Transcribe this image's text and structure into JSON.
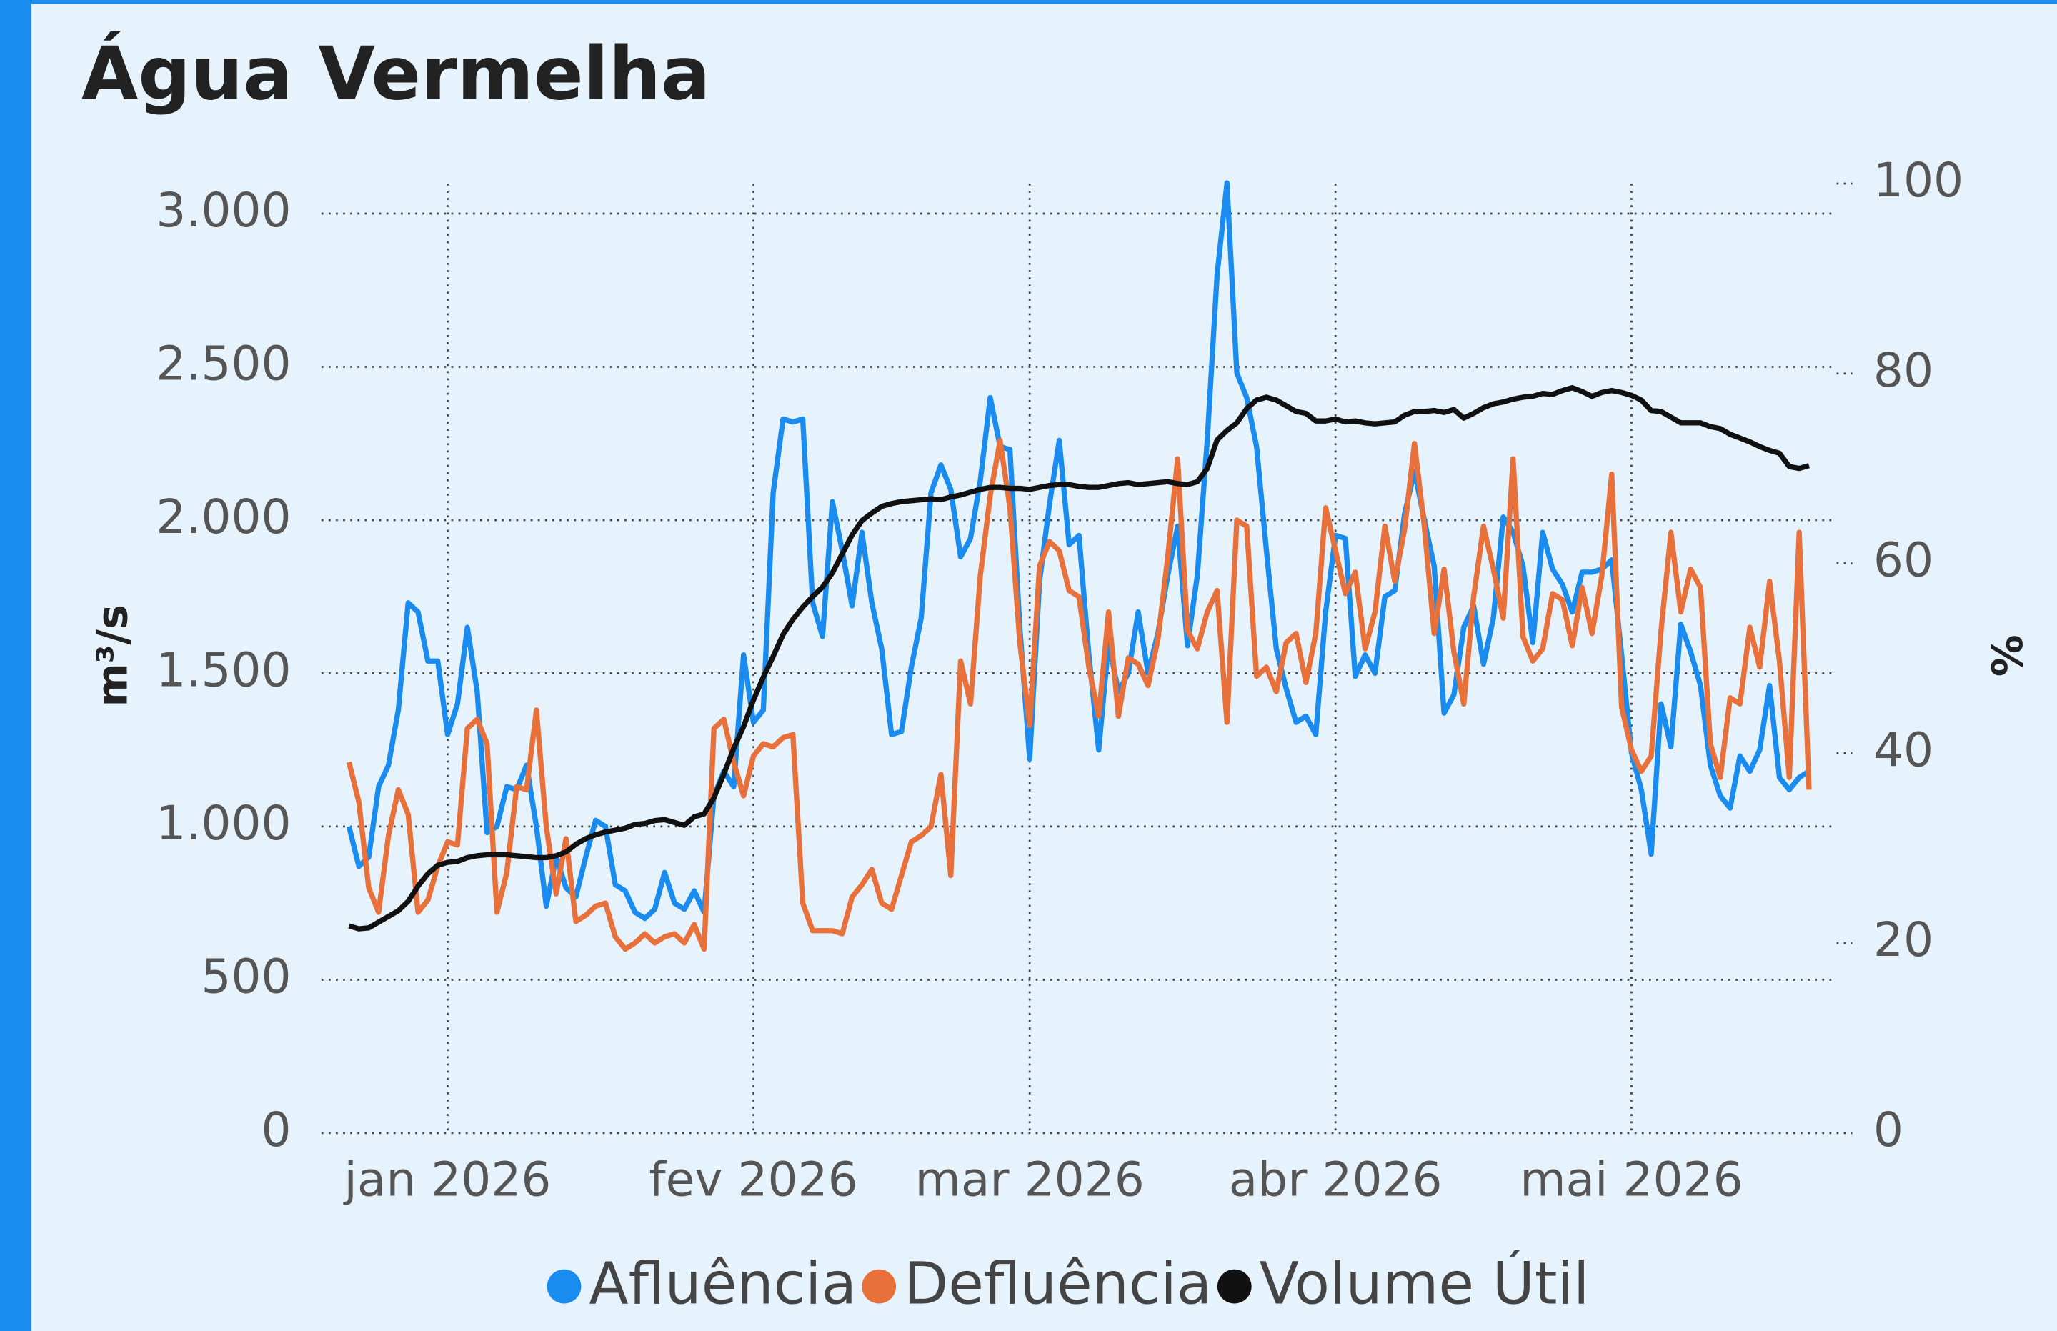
{
  "chart_data": {
    "type": "line",
    "title": "Água Vermelha",
    "y_label": "m³/s",
    "y2_label": "%",
    "categories": [
      null,
      null,
      null,
      null,
      null,
      null,
      null,
      null,
      null,
      null,
      "jan 2026",
      null,
      null,
      null,
      null,
      null,
      null,
      null,
      null,
      null,
      null,
      null,
      null,
      null,
      null,
      null,
      null,
      null,
      null,
      null,
      null,
      null,
      null,
      null,
      null,
      null,
      null,
      null,
      null,
      null,
      null,
      "fev 2026",
      null,
      null,
      null,
      null,
      null,
      null,
      null,
      null,
      null,
      null,
      null,
      null,
      null,
      null,
      null,
      null,
      null,
      null,
      null,
      null,
      null,
      null,
      null,
      null,
      null,
      null,
      null,
      "mar 2026",
      null,
      null,
      null,
      null,
      null,
      null,
      null,
      null,
      null,
      null,
      null,
      null,
      null,
      null,
      null,
      null,
      null,
      null,
      null,
      null,
      null,
      null,
      null,
      null,
      null,
      null,
      null,
      null,
      null,
      null,
      "abr 2026",
      null,
      null,
      null,
      null,
      null,
      null,
      null,
      null,
      null,
      null,
      null,
      null,
      null,
      null,
      null,
      null,
      null,
      null,
      null,
      null,
      null,
      null,
      null,
      null,
      null,
      null,
      null,
      null,
      null,
      "mai 2026",
      null,
      null,
      null,
      null,
      null,
      null,
      null,
      null,
      null,
      null,
      null,
      null,
      null,
      null,
      null,
      null,
      null,
      null
    ],
    "series": [
      {
        "name": "Afluência",
        "color": "#1a8cf0",
        "values": [
          1000,
          870,
          900,
          1130,
          1200,
          1380,
          1730,
          1700,
          1540,
          1540,
          1300,
          1400,
          1650,
          1440,
          980,
          1000,
          1130,
          1120,
          1200,
          1000,
          740,
          900,
          800,
          770,
          900,
          1020,
          1000,
          810,
          790,
          720,
          700,
          730,
          850,
          750,
          730,
          790,
          720,
          1100,
          1180,
          1130,
          1560,
          1340,
          1380,
          2090,
          2330,
          2320,
          2330,
          1730,
          1620,
          2060,
          1900,
          1720,
          1960,
          1730,
          1580,
          1300,
          1310,
          1520,
          1680,
          2090,
          2180,
          2100,
          1880,
          1940,
          2130,
          2400,
          2240,
          2230,
          1650,
          1220,
          1800,
          2050,
          2260,
          1920,
          1950,
          1560,
          1250,
          1600,
          1440,
          1500,
          1700,
          1500,
          1630,
          1820,
          1980,
          1590,
          1820,
          2260,
          2800,
          3100,
          2480,
          2400,
          2240,
          1900,
          1580,
          1450,
          1340,
          1360,
          1300,
          1700,
          1950,
          1940,
          1490,
          1560,
          1500,
          1750,
          1770,
          2020,
          2160,
          2000,
          1850,
          1370,
          1430,
          1650,
          1720,
          1530,
          1680,
          2010,
          1960,
          1850,
          1600,
          1960,
          1840,
          1790,
          1700,
          1830,
          1830,
          1840,
          1870,
          1560,
          1240,
          1120,
          910,
          1400,
          1260,
          1660,
          1570,
          1460,
          1200,
          1100,
          1060,
          1230,
          1180,
          1250,
          1460,
          1160,
          1120,
          1160,
          1180
        ]
      },
      {
        "name": "Defluência",
        "color": "#e8703a",
        "values": [
          1210,
          1080,
          800,
          720,
          970,
          1120,
          1040,
          720,
          760,
          870,
          950,
          940,
          1320,
          1350,
          1270,
          720,
          850,
          1130,
          1120,
          1380,
          1000,
          780,
          960,
          690,
          710,
          740,
          750,
          640,
          600,
          620,
          650,
          620,
          640,
          650,
          620,
          680,
          600,
          1320,
          1350,
          1210,
          1100,
          1230,
          1270,
          1260,
          1290,
          1300,
          750,
          660,
          660,
          660,
          650,
          770,
          810,
          860,
          750,
          730,
          840,
          950,
          970,
          1000,
          1170,
          840,
          1540,
          1400,
          1820,
          2080,
          2260,
          2040,
          1600,
          1330,
          1850,
          1930,
          1900,
          1770,
          1750,
          1520,
          1360,
          1700,
          1360,
          1550,
          1530,
          1460,
          1610,
          1880,
          2200,
          1640,
          1580,
          1700,
          1770,
          1340,
          2000,
          1980,
          1490,
          1520,
          1440,
          1600,
          1630,
          1470,
          1630,
          2040,
          1900,
          1760,
          1830,
          1580,
          1700,
          1980,
          1800,
          1970,
          2250,
          1980,
          1630,
          1840,
          1570,
          1400,
          1750,
          1980,
          1840,
          1680,
          2200,
          1620,
          1540,
          1580,
          1760,
          1740,
          1590,
          1780,
          1630,
          1820,
          2150,
          1390,
          1250,
          1180,
          1230,
          1640,
          1960,
          1700,
          1840,
          1780,
          1270,
          1160,
          1420,
          1400,
          1650,
          1520,
          1800,
          1540,
          1160,
          1960,
          1120
        ]
      },
      {
        "name": "Volume Útil",
        "color": "#111111",
        "axis": "y2",
        "values": [
          21.8,
          21.5,
          21.6,
          22.2,
          22.8,
          23.4,
          24.4,
          26.0,
          27.3,
          28.2,
          28.5,
          28.6,
          29.0,
          29.2,
          29.3,
          29.3,
          29.3,
          29.2,
          29.1,
          29.0,
          29.0,
          29.2,
          29.6,
          30.4,
          31.0,
          31.4,
          31.7,
          31.9,
          32.1,
          32.5,
          32.6,
          32.9,
          33.0,
          32.7,
          32.4,
          33.3,
          33.6,
          35.3,
          37.8,
          40.5,
          42.8,
          45.6,
          48.0,
          50.2,
          52.5,
          54.1,
          55.4,
          56.5,
          57.5,
          59.0,
          61.0,
          63.0,
          64.5,
          65.3,
          66.0,
          66.3,
          66.5,
          66.6,
          66.7,
          66.8,
          66.7,
          67.0,
          67.2,
          67.5,
          67.8,
          68.0,
          68.0,
          67.9,
          67.9,
          67.8,
          68.0,
          68.2,
          68.3,
          68.3,
          68.1,
          68.0,
          68.0,
          68.2,
          68.4,
          68.5,
          68.3,
          68.4,
          68.5,
          68.6,
          68.4,
          68.3,
          68.6,
          70.0,
          73.0,
          74.0,
          74.8,
          76.3,
          77.2,
          77.5,
          77.2,
          76.6,
          76.0,
          75.8,
          75.0,
          75.0,
          75.2,
          74.9,
          75.0,
          74.8,
          74.7,
          74.8,
          74.9,
          75.6,
          76.0,
          76.0,
          76.1,
          75.9,
          76.2,
          75.3,
          75.8,
          76.4,
          76.8,
          77.0,
          77.3,
          77.5,
          77.6,
          77.9,
          77.8,
          78.2,
          78.5,
          78.1,
          77.6,
          78.0,
          78.2,
          78.0,
          77.7,
          77.2,
          76.1,
          76.0,
          75.4,
          74.8,
          74.8,
          74.8,
          74.4,
          74.2,
          73.6,
          73.2,
          72.8,
          72.3,
          71.9,
          71.6,
          70.2,
          70.0,
          70.3
        ]
      }
    ],
    "ylim": [
      0,
      3098
    ],
    "yticks": [
      0,
      500,
      {
        "value": 1000,
        "label": "1.000"
      },
      {
        "value": 1500,
        "label": "1.500"
      },
      {
        "value": 2000,
        "label": "2.000"
      },
      {
        "value": 2500,
        "label": "2.500"
      },
      {
        "value": 3000,
        "label": "3.000"
      }
    ],
    "y2lim": [
      0,
      100
    ],
    "y2ticks": [
      0,
      20,
      40,
      60,
      80,
      100
    ],
    "grid": true
  }
}
